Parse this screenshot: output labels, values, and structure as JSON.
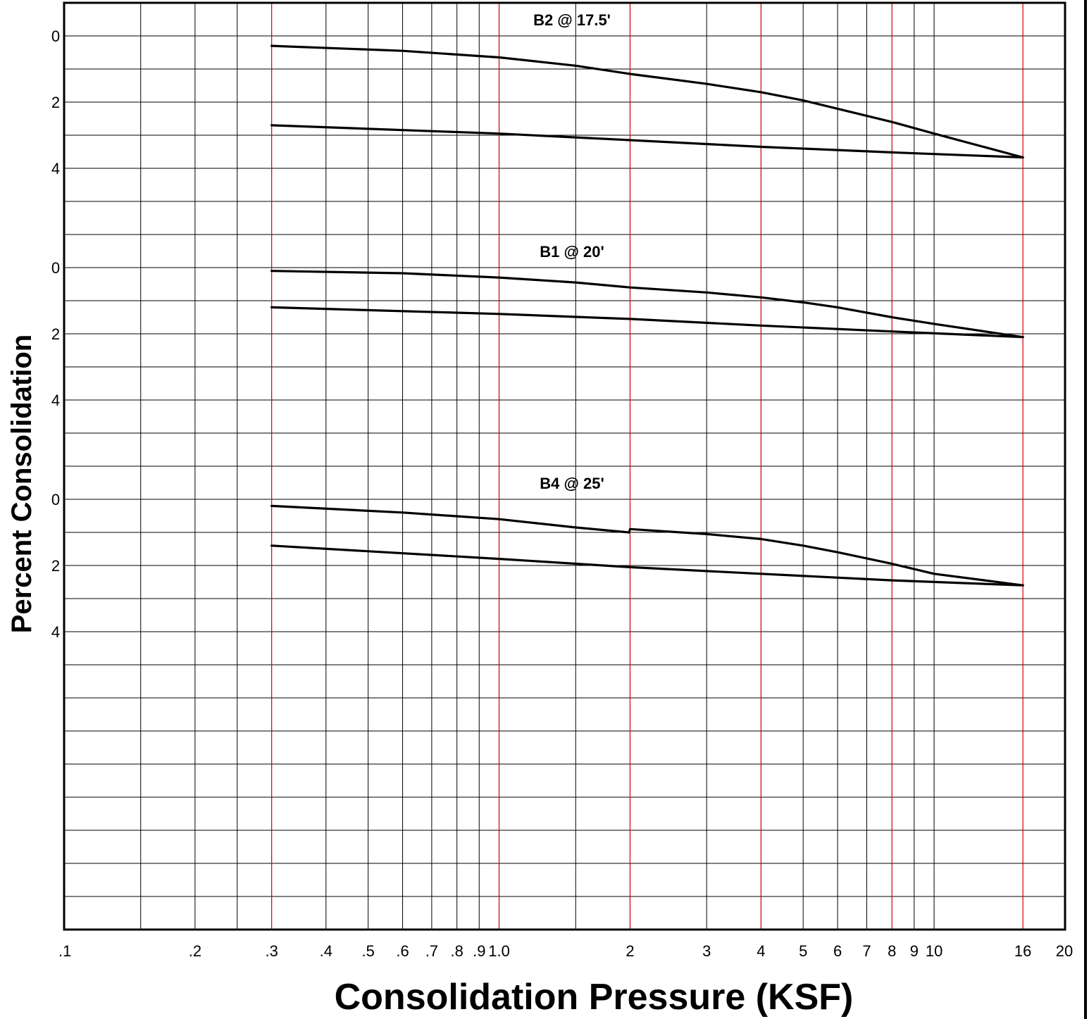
{
  "chart_data": {
    "type": "line",
    "xscale": "log",
    "xlim": [
      0.1,
      20
    ],
    "xlabel": "Consolidation Pressure (KSF)",
    "ylabel": "Percent Consolidation",
    "grid": true,
    "colors": {
      "grid_minor": "#000000",
      "grid_major": "#cc0000",
      "series": "#000000"
    },
    "x_grid_minor": [
      0.15,
      0.2,
      0.25,
      0.4,
      0.5,
      0.6,
      0.7,
      0.8,
      0.9,
      1.5,
      3,
      5,
      6,
      7,
      9,
      10
    ],
    "x_grid_major": [
      0.3,
      1.0,
      2,
      4,
      8,
      16
    ],
    "xticks": [
      {
        "value": 0.1,
        "label": ".1"
      },
      {
        "value": 0.2,
        "label": ".2"
      },
      {
        "value": 0.3,
        "label": ".3"
      },
      {
        "value": 0.4,
        "label": ".4"
      },
      {
        "value": 0.5,
        "label": ".5"
      },
      {
        "value": 0.6,
        "label": ".6"
      },
      {
        "value": 0.7,
        "label": ".7"
      },
      {
        "value": 0.8,
        "label": ".8"
      },
      {
        "value": 0.9,
        "label": ".9"
      },
      {
        "value": 1.0,
        "label": "1.0"
      },
      {
        "value": 2,
        "label": "2"
      },
      {
        "value": 3,
        "label": "3"
      },
      {
        "value": 4,
        "label": "4"
      },
      {
        "value": 5,
        "label": "5"
      },
      {
        "value": 6,
        "label": "6"
      },
      {
        "value": 7,
        "label": "7"
      },
      {
        "value": 8,
        "label": "8"
      },
      {
        "value": 9,
        "label": "9"
      },
      {
        "value": 10,
        "label": "10"
      },
      {
        "value": 16,
        "label": "16"
      },
      {
        "value": 20,
        "label": "20"
      }
    ],
    "panels": [
      {
        "title": "B2 @ 17.5'",
        "yticks": [
          {
            "value": 0,
            "label": "0"
          },
          {
            "value": 2,
            "label": "2"
          },
          {
            "value": 4,
            "label": "4"
          }
        ],
        "series": [
          {
            "x": [
              0.3,
              0.6,
              1.0,
              1.5,
              2,
              3,
              4,
              5,
              6,
              8,
              10,
              16
            ],
            "y": [
              0.3,
              0.45,
              0.65,
              0.9,
              1.15,
              1.45,
              1.7,
              1.95,
              2.2,
              2.6,
              2.95,
              3.67
            ]
          },
          {
            "x": [
              0.3,
              1.0,
              2,
              4,
              8,
              16
            ],
            "y": [
              2.7,
              2.95,
              3.15,
              3.35,
              3.52,
              3.67
            ]
          }
        ]
      },
      {
        "title": "B1 @ 20'",
        "yticks": [
          {
            "value": 0,
            "label": "0"
          },
          {
            "value": 2,
            "label": "2"
          },
          {
            "value": 4,
            "label": "4"
          }
        ],
        "series": [
          {
            "x": [
              0.3,
              0.6,
              1.0,
              1.5,
              2,
              3,
              4,
              5,
              6,
              8,
              10,
              16
            ],
            "y": [
              0.1,
              0.17,
              0.3,
              0.45,
              0.6,
              0.75,
              0.9,
              1.05,
              1.2,
              1.5,
              1.7,
              2.1
            ]
          },
          {
            "x": [
              0.3,
              1.0,
              2,
              4,
              8,
              16
            ],
            "y": [
              1.2,
              1.4,
              1.55,
              1.75,
              1.93,
              2.1
            ]
          }
        ]
      },
      {
        "title": "B4 @ 25'",
        "yticks": [
          {
            "value": 0,
            "label": "0"
          },
          {
            "value": 2,
            "label": "2"
          },
          {
            "value": 4,
            "label": "4"
          }
        ],
        "series": [
          {
            "x": [
              0.3,
              0.6,
              1.0,
              1.5,
              1.99,
              2.0,
              3,
              4,
              5,
              6,
              8,
              10,
              16
            ],
            "y": [
              0.2,
              0.4,
              0.6,
              0.85,
              1.0,
              0.9,
              1.05,
              1.2,
              1.4,
              1.6,
              1.95,
              2.25,
              2.6
            ]
          },
          {
            "x": [
              0.3,
              1.0,
              2,
              4,
              8,
              16
            ],
            "y": [
              1.4,
              1.8,
              2.05,
              2.25,
              2.45,
              2.6
            ]
          }
        ]
      }
    ]
  }
}
